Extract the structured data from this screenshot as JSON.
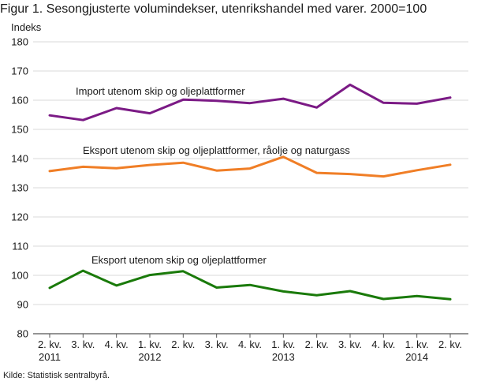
{
  "title": "Figur 1. Sesongjusterte volumindekser, utenrikshandel med varer. 2000=100",
  "source": "Kilde: Statistisk sentralbyrå.",
  "chart_data": {
    "type": "line",
    "ylabel": "Indeks",
    "xlabel": "",
    "ylim": [
      80,
      180
    ],
    "yticks": [
      80,
      90,
      100,
      110,
      120,
      130,
      140,
      150,
      160,
      170,
      180
    ],
    "grid": "horizontal",
    "legend": "inline labels above each line",
    "categories": [
      {
        "quarter": "2. kv.",
        "year": "2011"
      },
      {
        "quarter": "3. kv.",
        "year": ""
      },
      {
        "quarter": "4. kv.",
        "year": ""
      },
      {
        "quarter": "1. kv.",
        "year": "2012"
      },
      {
        "quarter": "2. kv.",
        "year": ""
      },
      {
        "quarter": "3. kv.",
        "year": ""
      },
      {
        "quarter": "4. kv.",
        "year": ""
      },
      {
        "quarter": "1. kv.",
        "year": "2013"
      },
      {
        "quarter": "2. kv.",
        "year": ""
      },
      {
        "quarter": "3. kv.",
        "year": ""
      },
      {
        "quarter": "4. kv.",
        "year": ""
      },
      {
        "quarter": "1. kv.",
        "year": "2014"
      },
      {
        "quarter": "2. kv.",
        "year": ""
      }
    ],
    "series": [
      {
        "name": "Import utenom skip og oljeplattformer",
        "color": "#7b1a85",
        "values": [
          154.8,
          153.2,
          157.3,
          155.5,
          160.2,
          159.8,
          159.0,
          160.5,
          157.5,
          165.3,
          159.1,
          158.8,
          160.9
        ]
      },
      {
        "name": "Eksport utenom skip og oljeplattformer, råolje og naturgass",
        "color": "#f07e26",
        "values": [
          135.7,
          137.2,
          136.7,
          137.8,
          138.6,
          135.9,
          136.6,
          140.6,
          135.1,
          134.7,
          133.9,
          136.0,
          137.9
        ]
      },
      {
        "name": "Eksport utenom skip og oljeplattformer",
        "color": "#1a7a0a",
        "values": [
          95.7,
          101.6,
          96.5,
          100.1,
          101.4,
          95.8,
          96.7,
          94.5,
          93.2,
          94.6,
          91.9,
          92.9,
          91.8
        ]
      }
    ]
  }
}
